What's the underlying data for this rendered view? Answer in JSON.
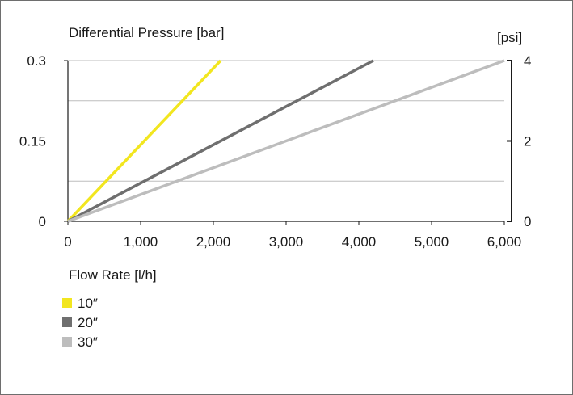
{
  "colors": {
    "frame": "#6e6e6e",
    "grid": "#bdbdbd",
    "axis": "#1a1a1a",
    "series_10": "#f2e61f",
    "series_20": "#6f6f6f",
    "series_30": "#bdbdbd"
  },
  "chart_data": {
    "type": "line",
    "title": "",
    "ylabel": "Differential Pressure [bar]",
    "y2label": "[psi]",
    "xlabel": "Flow Rate [l/h]",
    "xlim": [
      0,
      6000
    ],
    "ylim": [
      0,
      0.3
    ],
    "y2lim": [
      0,
      4
    ],
    "x_ticks": [
      0,
      1000,
      2000,
      3000,
      4000,
      5000,
      6000
    ],
    "x_tick_labels": [
      "0",
      "1,000",
      "2,000",
      "3,000",
      "4,000",
      "5,000",
      "6,000"
    ],
    "y_ticks": [
      0,
      0.15,
      0.3
    ],
    "y_tick_labels": [
      "0",
      "0.15",
      "0.3"
    ],
    "y_gridlines": [
      0.075,
      0.15,
      0.225,
      0.3
    ],
    "y2_ticks": [
      0,
      2,
      4
    ],
    "y2_tick_labels": [
      "0",
      "2",
      "4"
    ],
    "grid": true,
    "legend_position": "bottom-left",
    "series": [
      {
        "name": "10″",
        "color_key": "series_10",
        "x": [
          0,
          2100
        ],
        "y": [
          0,
          0.3
        ]
      },
      {
        "name": "20″",
        "color_key": "series_20",
        "x": [
          0,
          4200
        ],
        "y": [
          0,
          0.3
        ]
      },
      {
        "name": "30″",
        "color_key": "series_30",
        "x": [
          0,
          6000
        ],
        "y": [
          0,
          0.3
        ]
      }
    ]
  }
}
